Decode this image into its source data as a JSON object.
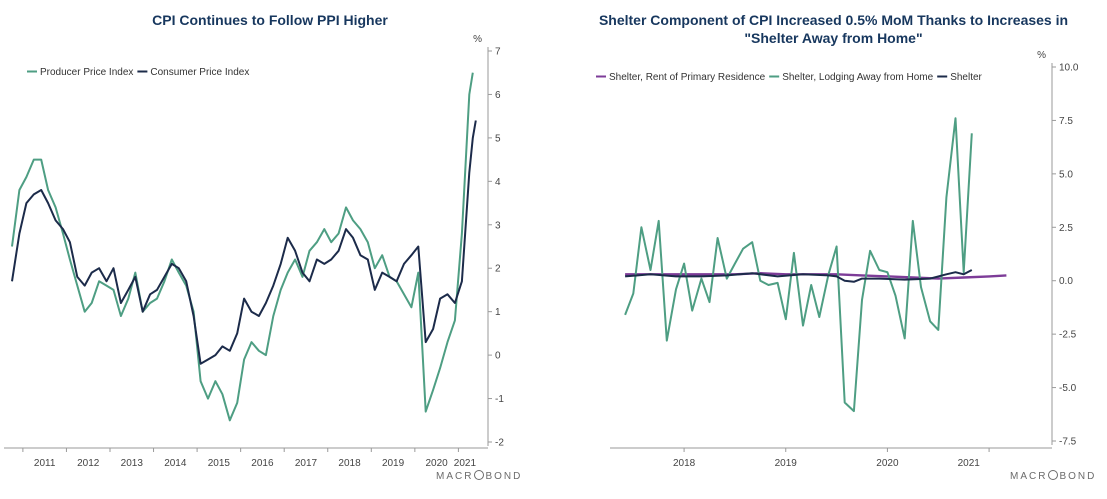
{
  "charts": [
    {
      "title": "CPI Continues to Follow PPI Higher",
      "unit_label": "%",
      "brand": {
        "left": "MACR",
        "right": "BOND"
      }
    },
    {
      "title_line1": "Shelter Component of CPI Increased 0.5% MoM Thanks to Increases in",
      "title_line2": "\"Shelter Away from Home\"",
      "unit_label": "%",
      "brand": {
        "left": "MACR",
        "right": "BOND"
      }
    }
  ],
  "colors": {
    "green": "#4e9e83",
    "navy": "#1c2b4a",
    "purple": "#7d3c98",
    "title": "#17375e"
  },
  "chart_data": [
    {
      "type": "line",
      "title": "CPI Continues to Follow PPI Higher",
      "xlabel": "",
      "ylabel": "%",
      "ylim": [
        -2,
        7
      ],
      "xlim": [
        2010.75,
        2021.45
      ],
      "y_ticks": [
        -2,
        -1,
        0,
        1,
        2,
        3,
        4,
        5,
        6,
        7
      ],
      "x_ticks": [
        {
          "label": "2011",
          "x": 2011.5
        },
        {
          "label": "2012",
          "x": 2012.5
        },
        {
          "label": "2013",
          "x": 2013.5
        },
        {
          "label": "2014",
          "x": 2014.5
        },
        {
          "label": "2015",
          "x": 2015.5
        },
        {
          "label": "2016",
          "x": 2016.5
        },
        {
          "label": "2017",
          "x": 2017.5
        },
        {
          "label": "2018",
          "x": 2018.5
        },
        {
          "label": "2019",
          "x": 2019.5
        },
        {
          "label": "2020",
          "x": 2020.5
        },
        {
          "label": "2021",
          "x": 2021.15
        }
      ],
      "y_axis_side": "right",
      "grid": false,
      "legend_position": "top-left",
      "series": [
        {
          "name": "Producer Price Index",
          "color": "#4e9e83",
          "points": [
            [
              2010.75,
              2.5
            ],
            [
              2010.92,
              3.8
            ],
            [
              2011.08,
              4.1
            ],
            [
              2011.25,
              4.5
            ],
            [
              2011.42,
              4.5
            ],
            [
              2011.58,
              3.8
            ],
            [
              2011.75,
              3.4
            ],
            [
              2011.92,
              2.8
            ],
            [
              2012.08,
              2.2
            ],
            [
              2012.25,
              1.6
            ],
            [
              2012.42,
              1.0
            ],
            [
              2012.58,
              1.2
            ],
            [
              2012.75,
              1.7
            ],
            [
              2012.92,
              1.6
            ],
            [
              2013.08,
              1.5
            ],
            [
              2013.25,
              0.9
            ],
            [
              2013.42,
              1.3
            ],
            [
              2013.58,
              1.9
            ],
            [
              2013.75,
              1.0
            ],
            [
              2013.92,
              1.2
            ],
            [
              2014.08,
              1.3
            ],
            [
              2014.25,
              1.7
            ],
            [
              2014.42,
              2.2
            ],
            [
              2014.58,
              1.9
            ],
            [
              2014.75,
              1.6
            ],
            [
              2014.92,
              1.0
            ],
            [
              2015.08,
              -0.6
            ],
            [
              2015.25,
              -1.0
            ],
            [
              2015.42,
              -0.6
            ],
            [
              2015.58,
              -0.9
            ],
            [
              2015.75,
              -1.5
            ],
            [
              2015.92,
              -1.1
            ],
            [
              2016.08,
              -0.1
            ],
            [
              2016.25,
              0.3
            ],
            [
              2016.42,
              0.1
            ],
            [
              2016.58,
              0.0
            ],
            [
              2016.75,
              0.9
            ],
            [
              2016.92,
              1.5
            ],
            [
              2017.08,
              1.9
            ],
            [
              2017.25,
              2.2
            ],
            [
              2017.42,
              1.8
            ],
            [
              2017.58,
              2.4
            ],
            [
              2017.75,
              2.6
            ],
            [
              2017.92,
              2.9
            ],
            [
              2018.08,
              2.6
            ],
            [
              2018.25,
              2.8
            ],
            [
              2018.42,
              3.4
            ],
            [
              2018.58,
              3.1
            ],
            [
              2018.75,
              2.9
            ],
            [
              2018.92,
              2.6
            ],
            [
              2019.08,
              2.0
            ],
            [
              2019.25,
              2.3
            ],
            [
              2019.42,
              1.8
            ],
            [
              2019.58,
              1.7
            ],
            [
              2019.75,
              1.4
            ],
            [
              2019.92,
              1.1
            ],
            [
              2020.08,
              1.9
            ],
            [
              2020.25,
              -1.3
            ],
            [
              2020.42,
              -0.8
            ],
            [
              2020.58,
              -0.3
            ],
            [
              2020.75,
              0.3
            ],
            [
              2020.92,
              0.8
            ],
            [
              2021.08,
              2.8
            ],
            [
              2021.25,
              6.0
            ],
            [
              2021.33,
              6.5
            ]
          ]
        },
        {
          "name": "Consumer Price Index",
          "color": "#1c2b4a",
          "points": [
            [
              2010.75,
              1.7
            ],
            [
              2010.92,
              2.8
            ],
            [
              2011.08,
              3.5
            ],
            [
              2011.25,
              3.7
            ],
            [
              2011.42,
              3.8
            ],
            [
              2011.58,
              3.5
            ],
            [
              2011.75,
              3.1
            ],
            [
              2011.92,
              2.9
            ],
            [
              2012.08,
              2.6
            ],
            [
              2012.25,
              1.8
            ],
            [
              2012.42,
              1.6
            ],
            [
              2012.58,
              1.9
            ],
            [
              2012.75,
              2.0
            ],
            [
              2012.92,
              1.7
            ],
            [
              2013.08,
              2.0
            ],
            [
              2013.25,
              1.2
            ],
            [
              2013.42,
              1.5
            ],
            [
              2013.58,
              1.8
            ],
            [
              2013.75,
              1.0
            ],
            [
              2013.92,
              1.4
            ],
            [
              2014.08,
              1.5
            ],
            [
              2014.25,
              1.8
            ],
            [
              2014.42,
              2.1
            ],
            [
              2014.58,
              2.0
            ],
            [
              2014.75,
              1.7
            ],
            [
              2014.92,
              0.9
            ],
            [
              2015.08,
              -0.2
            ],
            [
              2015.25,
              -0.1
            ],
            [
              2015.42,
              0.0
            ],
            [
              2015.58,
              0.2
            ],
            [
              2015.75,
              0.1
            ],
            [
              2015.92,
              0.5
            ],
            [
              2016.08,
              1.3
            ],
            [
              2016.25,
              1.0
            ],
            [
              2016.42,
              0.9
            ],
            [
              2016.58,
              1.2
            ],
            [
              2016.75,
              1.6
            ],
            [
              2016.92,
              2.1
            ],
            [
              2017.08,
              2.7
            ],
            [
              2017.25,
              2.4
            ],
            [
              2017.42,
              1.9
            ],
            [
              2017.58,
              1.7
            ],
            [
              2017.75,
              2.2
            ],
            [
              2017.92,
              2.1
            ],
            [
              2018.08,
              2.2
            ],
            [
              2018.25,
              2.4
            ],
            [
              2018.42,
              2.9
            ],
            [
              2018.58,
              2.7
            ],
            [
              2018.75,
              2.3
            ],
            [
              2018.92,
              2.2
            ],
            [
              2019.08,
              1.5
            ],
            [
              2019.25,
              1.9
            ],
            [
              2019.42,
              1.8
            ],
            [
              2019.58,
              1.7
            ],
            [
              2019.75,
              2.1
            ],
            [
              2019.92,
              2.3
            ],
            [
              2020.08,
              2.5
            ],
            [
              2020.25,
              0.3
            ],
            [
              2020.42,
              0.6
            ],
            [
              2020.58,
              1.3
            ],
            [
              2020.75,
              1.4
            ],
            [
              2020.92,
              1.2
            ],
            [
              2021.08,
              1.7
            ],
            [
              2021.25,
              4.2
            ],
            [
              2021.33,
              5.0
            ],
            [
              2021.4,
              5.4
            ]
          ]
        }
      ]
    },
    {
      "type": "line",
      "title": "Shelter Component of CPI Increased 0.5% MoM Thanks to Increases in \"Shelter Away from Home\"",
      "xlabel": "",
      "ylabel": "%",
      "ylim": [
        -7.5,
        10.0
      ],
      "xlim": [
        2017.35,
        2021.55
      ],
      "y_ticks": [
        -7.5,
        -5.0,
        -2.5,
        0.0,
        2.5,
        5.0,
        7.5,
        10.0
      ],
      "y_tick_labels": [
        "-7.5",
        "-5.0",
        "-2.5",
        "0.0",
        "2.5",
        "5.0",
        "7.5",
        "10.0"
      ],
      "x_ticks": [
        {
          "label": "2018",
          "x": 2018.0
        },
        {
          "label": "2019",
          "x": 2019.0
        },
        {
          "label": "2020",
          "x": 2020.0
        },
        {
          "label": "2021",
          "x": 2020.8
        }
      ],
      "y_axis_side": "right",
      "grid": false,
      "legend_position": "top-left",
      "series": [
        {
          "name": "Shelter, Rent of Primary Residence",
          "color": "#7d3c98",
          "points": [
            [
              2017.42,
              0.3
            ],
            [
              2017.75,
              0.3
            ],
            [
              2018.0,
              0.3
            ],
            [
              2018.5,
              0.3
            ],
            [
              2018.75,
              0.35
            ],
            [
              2019.0,
              0.3
            ],
            [
              2019.5,
              0.3
            ],
            [
              2019.75,
              0.25
            ],
            [
              2020.0,
              0.2
            ],
            [
              2020.25,
              0.15
            ],
            [
              2020.5,
              0.1
            ],
            [
              2020.75,
              0.15
            ],
            [
              2021.0,
              0.2
            ],
            [
              2021.17,
              0.25
            ]
          ]
        },
        {
          "name": "Shelter, Lodging Away from Home",
          "color": "#4e9e83",
          "points": [
            [
              2017.42,
              -1.6
            ],
            [
              2017.5,
              -0.6
            ],
            [
              2017.58,
              2.5
            ],
            [
              2017.67,
              0.5
            ],
            [
              2017.75,
              2.8
            ],
            [
              2017.83,
              -2.8
            ],
            [
              2017.92,
              -0.4
            ],
            [
              2018.0,
              0.8
            ],
            [
              2018.08,
              -1.4
            ],
            [
              2018.17,
              0.1
            ],
            [
              2018.25,
              -1.0
            ],
            [
              2018.33,
              2.0
            ],
            [
              2018.42,
              0.1
            ],
            [
              2018.5,
              0.8
            ],
            [
              2018.58,
              1.5
            ],
            [
              2018.67,
              1.8
            ],
            [
              2018.75,
              0.0
            ],
            [
              2018.83,
              -0.2
            ],
            [
              2018.92,
              -0.1
            ],
            [
              2019.0,
              -1.8
            ],
            [
              2019.08,
              1.3
            ],
            [
              2019.17,
              -2.1
            ],
            [
              2019.25,
              -0.2
            ],
            [
              2019.33,
              -1.7
            ],
            [
              2019.42,
              0.3
            ],
            [
              2019.5,
              1.6
            ],
            [
              2019.58,
              -5.7
            ],
            [
              2019.67,
              -6.1
            ],
            [
              2019.75,
              -0.9
            ],
            [
              2019.83,
              1.4
            ],
            [
              2019.92,
              0.5
            ],
            [
              2020.0,
              0.4
            ],
            [
              2020.08,
              -0.7
            ],
            [
              2020.17,
              -2.7
            ],
            [
              2020.25,
              2.8
            ],
            [
              2020.33,
              -0.3
            ],
            [
              2020.42,
              -1.9
            ],
            [
              2020.5,
              -2.3
            ],
            [
              2020.58,
              3.9
            ],
            [
              2020.67,
              7.6
            ],
            [
              2020.75,
              0.4
            ],
            [
              2020.83,
              6.9
            ]
          ]
        },
        {
          "name": "Shelter",
          "color": "#1c2b4a",
          "points": [
            [
              2017.42,
              0.2
            ],
            [
              2017.67,
              0.3
            ],
            [
              2017.92,
              0.2
            ],
            [
              2018.17,
              0.2
            ],
            [
              2018.42,
              0.25
            ],
            [
              2018.67,
              0.35
            ],
            [
              2018.92,
              0.2
            ],
            [
              2019.17,
              0.3
            ],
            [
              2019.42,
              0.25
            ],
            [
              2019.5,
              0.2
            ],
            [
              2019.58,
              0.0
            ],
            [
              2019.67,
              -0.05
            ],
            [
              2019.75,
              0.1
            ],
            [
              2019.92,
              0.1
            ],
            [
              2020.17,
              0.05
            ],
            [
              2020.42,
              0.1
            ],
            [
              2020.58,
              0.3
            ],
            [
              2020.67,
              0.4
            ],
            [
              2020.75,
              0.3
            ],
            [
              2020.83,
              0.5
            ]
          ]
        }
      ]
    }
  ]
}
